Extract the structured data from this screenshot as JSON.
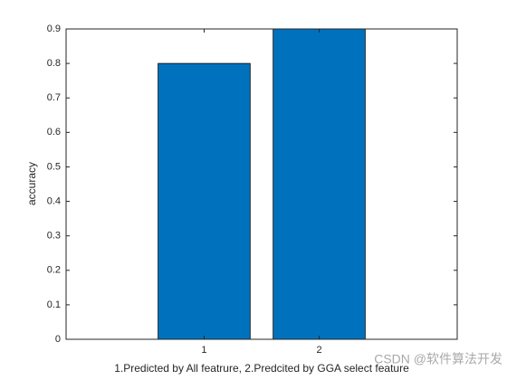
{
  "chart_data": {
    "type": "bar",
    "categories": [
      "1",
      "2"
    ],
    "values": [
      0.8,
      0.9
    ],
    "color": "#0072bd",
    "ylim": [
      0,
      0.9
    ],
    "yticks": [
      0,
      0.1,
      0.2,
      0.3,
      0.4,
      0.5,
      0.6,
      0.7,
      0.8,
      0.9
    ],
    "y_label": "accuracy",
    "x_label": "1.Predicted by All featrure,  2.Predcited by GGA select feature",
    "watermark": "CSDN @软件算法开发"
  }
}
